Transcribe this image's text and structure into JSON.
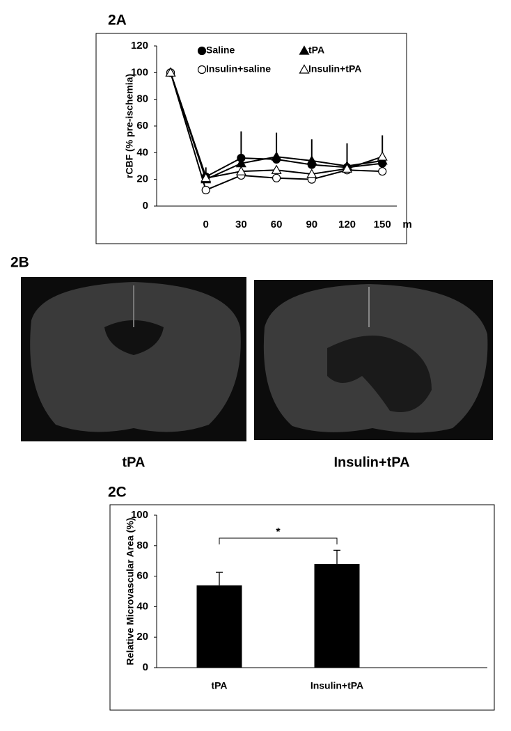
{
  "chart_data": [
    {
      "type": "line",
      "title": "2A",
      "y_label": "rCBF (% pre-ischemia)",
      "x_label": "m",
      "categories": [
        null,
        "0",
        "30",
        "60",
        "90",
        "120",
        "150"
      ],
      "ylim": [
        0,
        120
      ],
      "yticks": [
        0,
        20,
        40,
        60,
        80,
        100,
        120
      ],
      "series": [
        {
          "name": "Saline",
          "color": "#000000",
          "marker": "circle",
          "filled": true,
          "values": [
            100,
            22,
            36,
            35,
            31,
            29,
            32
          ],
          "errors": [
            null,
            7,
            20,
            20,
            19,
            18,
            21
          ]
        },
        {
          "name": "tPA",
          "color": "#000000",
          "marker": "triangle",
          "filled": true,
          "values": [
            100,
            20,
            32,
            37,
            34,
            30,
            34
          ]
        },
        {
          "name": "Insulin+saline",
          "color": "#000000",
          "marker": "circle",
          "filled": false,
          "values": [
            100,
            12,
            23,
            21,
            20,
            27,
            26
          ]
        },
        {
          "name": "Insulin+tPA",
          "color": "#000000",
          "marker": "triangle",
          "filled": false,
          "values": [
            100,
            21,
            26,
            27,
            24,
            28,
            37
          ]
        }
      ]
    },
    {
      "type": "bar",
      "title": "2C",
      "y_label": "Relative Microvascular Area (%)",
      "categories": [
        "tPA",
        "Insulin+tPA"
      ],
      "values": [
        54,
        68
      ],
      "errors": [
        8.5,
        9
      ],
      "color": "#000000",
      "ylim": [
        0,
        100
      ],
      "yticks": [
        0,
        20,
        40,
        60,
        80,
        100
      ],
      "significance": "*"
    }
  ],
  "figure_b": {
    "label": "2B",
    "captions": [
      "tPA",
      "Insulin+tPA"
    ]
  }
}
